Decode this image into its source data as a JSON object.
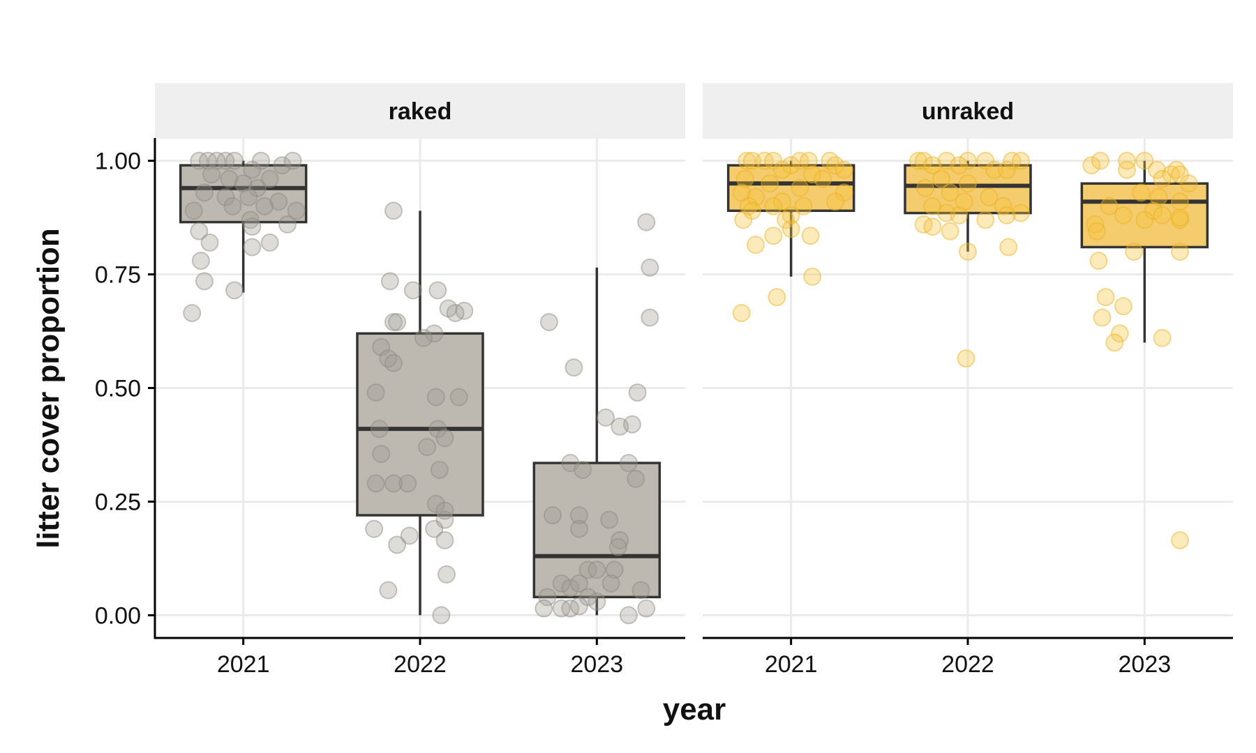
{
  "chart_data": {
    "type": "boxplot",
    "xlabel": "year",
    "ylabel": "litter cover proportion",
    "categories": [
      "2021",
      "2022",
      "2023"
    ],
    "ylim": [
      -0.05,
      1.05
    ],
    "yticks": [
      "0.00",
      "0.25",
      "0.50",
      "0.75",
      "1.00"
    ],
    "grid": true,
    "legend": "none",
    "panels": [
      {
        "label": "raked",
        "color": "#BDB9B1",
        "boxes": [
          {
            "year": "2021",
            "min": 0.71,
            "q1": 0.865,
            "median": 0.94,
            "q3": 0.99,
            "max": 1.0
          },
          {
            "year": "2022",
            "min": 0.0,
            "q1": 0.22,
            "median": 0.41,
            "q3": 0.62,
            "max": 0.89
          },
          {
            "year": "2023",
            "min": 0.0,
            "q1": 0.04,
            "median": 0.13,
            "q3": 0.335,
            "max": 0.765
          }
        ],
        "points": [
          [
            [
              -0.25,
              1.0
            ],
            [
              -0.2,
              1.0
            ],
            [
              -0.15,
              1.0
            ],
            [
              -0.1,
              1.0
            ],
            [
              -0.05,
              1.0
            ],
            [
              0.1,
              1.0
            ],
            [
              0.22,
              0.99
            ],
            [
              0.28,
              1.0
            ],
            [
              0.05,
              0.98
            ],
            [
              0.15,
              0.96
            ],
            [
              -0.18,
              0.97
            ],
            [
              -0.08,
              0.96
            ],
            [
              0.0,
              0.95
            ],
            [
              0.08,
              0.94
            ],
            [
              -0.22,
              0.93
            ],
            [
              -0.1,
              0.92
            ],
            [
              0.03,
              0.92
            ],
            [
              0.2,
              0.91
            ],
            [
              -0.06,
              0.9
            ],
            [
              0.12,
              0.9
            ],
            [
              -0.28,
              0.89
            ],
            [
              0.3,
              0.89
            ],
            [
              0.04,
              0.87
            ],
            [
              0.25,
              0.86
            ],
            [
              0.05,
              0.855
            ],
            [
              -0.25,
              0.845
            ],
            [
              -0.19,
              0.82
            ],
            [
              0.15,
              0.82
            ],
            [
              0.05,
              0.81
            ],
            [
              -0.24,
              0.78
            ],
            [
              -0.22,
              0.735
            ],
            [
              -0.05,
              0.715
            ],
            [
              -0.29,
              0.665
            ]
          ],
          [
            [
              -0.15,
              0.89
            ],
            [
              -0.17,
              0.735
            ],
            [
              -0.04,
              0.715
            ],
            [
              0.1,
              0.715
            ],
            [
              0.16,
              0.675
            ],
            [
              0.25,
              0.67
            ],
            [
              0.2,
              0.665
            ],
            [
              -0.15,
              0.645
            ],
            [
              -0.13,
              0.645
            ],
            [
              0.08,
              0.62
            ],
            [
              0.02,
              0.61
            ],
            [
              -0.22,
              0.59
            ],
            [
              -0.18,
              0.565
            ],
            [
              -0.15,
              0.555
            ],
            [
              -0.25,
              0.49
            ],
            [
              0.09,
              0.48
            ],
            [
              0.22,
              0.48
            ],
            [
              -0.23,
              0.41
            ],
            [
              0.1,
              0.41
            ],
            [
              0.14,
              0.39
            ],
            [
              0.04,
              0.37
            ],
            [
              -0.22,
              0.355
            ],
            [
              0.11,
              0.32
            ],
            [
              -0.15,
              0.29
            ],
            [
              -0.25,
              0.29
            ],
            [
              -0.07,
              0.29
            ],
            [
              0.09,
              0.245
            ],
            [
              0.14,
              0.23
            ],
            [
              0.14,
              0.21
            ],
            [
              0.08,
              0.19
            ],
            [
              -0.26,
              0.19
            ],
            [
              -0.06,
              0.175
            ],
            [
              0.14,
              0.165
            ],
            [
              -0.13,
              0.155
            ],
            [
              -0.18,
              0.055
            ],
            [
              0.15,
              0.09
            ],
            [
              0.12,
              0.0
            ]
          ],
          [
            [
              -0.27,
              0.645
            ],
            [
              -0.13,
              0.545
            ],
            [
              0.3,
              0.765
            ],
            [
              0.28,
              0.865
            ],
            [
              0.3,
              0.655
            ],
            [
              0.23,
              0.49
            ],
            [
              0.05,
              0.435
            ],
            [
              0.13,
              0.415
            ],
            [
              0.2,
              0.42
            ],
            [
              -0.15,
              0.335
            ],
            [
              -0.08,
              0.32
            ],
            [
              0.18,
              0.335
            ],
            [
              0.22,
              0.3
            ],
            [
              -0.25,
              0.22
            ],
            [
              -0.1,
              0.22
            ],
            [
              0.07,
              0.21
            ],
            [
              -0.1,
              0.19
            ],
            [
              0.13,
              0.165
            ],
            [
              0.12,
              0.15
            ],
            [
              -0.05,
              0.1
            ],
            [
              0.0,
              0.1
            ],
            [
              0.1,
              0.1
            ],
            [
              -0.2,
              0.07
            ],
            [
              -0.15,
              0.06
            ],
            [
              -0.1,
              0.07
            ],
            [
              0.08,
              0.07
            ],
            [
              0.25,
              0.055
            ],
            [
              -0.28,
              0.04
            ],
            [
              -0.05,
              0.04
            ],
            [
              -0.3,
              0.015
            ],
            [
              -0.2,
              0.015
            ],
            [
              -0.15,
              0.015
            ],
            [
              -0.1,
              0.02
            ],
            [
              0.0,
              0.03
            ],
            [
              0.28,
              0.015
            ],
            [
              0.18,
              0.0
            ]
          ]
        ]
      },
      {
        "label": "unraked",
        "color": "#F4CC6E",
        "point_color": "#F6C23D",
        "boxes": [
          {
            "year": "2021",
            "min": 0.745,
            "q1": 0.89,
            "median": 0.95,
            "q3": 0.99,
            "max": 1.0
          },
          {
            "year": "2022",
            "min": 0.8,
            "q1": 0.885,
            "median": 0.945,
            "q3": 0.99,
            "max": 1.0
          },
          {
            "year": "2023",
            "min": 0.6,
            "q1": 0.81,
            "median": 0.91,
            "q3": 0.95,
            "max": 1.0
          }
        ],
        "points": [
          [
            [
              -0.25,
              1.0
            ],
            [
              -0.22,
              1.0
            ],
            [
              -0.15,
              1.0
            ],
            [
              -0.1,
              1.0
            ],
            [
              0.0,
              0.99
            ],
            [
              0.05,
              1.0
            ],
            [
              0.1,
              1.0
            ],
            [
              0.22,
              1.0
            ],
            [
              0.25,
              0.99
            ],
            [
              0.3,
              0.98
            ],
            [
              -0.05,
              0.98
            ],
            [
              0.12,
              0.97
            ],
            [
              0.18,
              0.96
            ],
            [
              -0.26,
              0.96
            ],
            [
              -0.12,
              0.95
            ],
            [
              0.05,
              0.94
            ],
            [
              -0.2,
              0.92
            ],
            [
              0.3,
              0.93
            ],
            [
              -0.28,
              0.93
            ],
            [
              -0.05,
              0.91
            ],
            [
              -0.24,
              0.9
            ],
            [
              -0.22,
              0.89
            ],
            [
              0.07,
              0.9
            ],
            [
              -0.1,
              0.9
            ],
            [
              0.25,
              0.91
            ],
            [
              0.0,
              0.88
            ],
            [
              -0.27,
              0.87
            ],
            [
              -0.03,
              0.87
            ],
            [
              -0.1,
              0.835
            ],
            [
              -0.2,
              0.815
            ],
            [
              0.11,
              0.835
            ],
            [
              0.0,
              0.85
            ],
            [
              0.12,
              0.745
            ],
            [
              -0.08,
              0.7
            ],
            [
              -0.28,
              0.665
            ]
          ],
          [
            [
              -0.28,
              1.0
            ],
            [
              -0.25,
              1.0
            ],
            [
              -0.12,
              1.0
            ],
            [
              0.0,
              1.0
            ],
            [
              0.1,
              1.0
            ],
            [
              0.25,
              1.0
            ],
            [
              0.3,
              1.0
            ],
            [
              -0.2,
              0.99
            ],
            [
              -0.05,
              0.99
            ],
            [
              0.15,
              0.98
            ],
            [
              0.22,
              0.98
            ],
            [
              -0.15,
              0.96
            ],
            [
              0.0,
              0.95
            ],
            [
              -0.24,
              0.94
            ],
            [
              -0.1,
              0.93
            ],
            [
              0.12,
              0.92
            ],
            [
              -0.02,
              0.91
            ],
            [
              0.2,
              0.9
            ],
            [
              -0.2,
              0.9
            ],
            [
              0.3,
              0.885
            ],
            [
              -0.12,
              0.885
            ],
            [
              -0.05,
              0.88
            ],
            [
              0.22,
              0.88
            ],
            [
              0.1,
              0.87
            ],
            [
              -0.25,
              0.86
            ],
            [
              -0.2,
              0.855
            ],
            [
              -0.1,
              0.845
            ],
            [
              0.0,
              0.8
            ],
            [
              0.23,
              0.81
            ],
            [
              -0.01,
              0.565
            ]
          ],
          [
            [
              -0.3,
              0.99
            ],
            [
              -0.25,
              1.0
            ],
            [
              -0.1,
              1.0
            ],
            [
              -0.1,
              0.98
            ],
            [
              0.0,
              1.0
            ],
            [
              0.07,
              0.98
            ],
            [
              0.15,
              0.97
            ],
            [
              0.18,
              0.98
            ],
            [
              0.2,
              0.97
            ],
            [
              0.25,
              0.95
            ],
            [
              0.1,
              0.96
            ],
            [
              -0.02,
              0.93
            ],
            [
              0.08,
              0.92
            ],
            [
              0.2,
              0.91
            ],
            [
              -0.2,
              0.9
            ],
            [
              0.05,
              0.89
            ],
            [
              0.1,
              0.88
            ],
            [
              -0.12,
              0.88
            ],
            [
              0.2,
              0.87
            ],
            [
              0.0,
              0.87
            ],
            [
              0.2,
              0.875
            ],
            [
              -0.28,
              0.86
            ],
            [
              -0.27,
              0.845
            ],
            [
              -0.26,
              0.78
            ],
            [
              0.2,
              0.8
            ],
            [
              -0.06,
              0.8
            ],
            [
              -0.22,
              0.7
            ],
            [
              -0.12,
              0.68
            ],
            [
              -0.24,
              0.655
            ],
            [
              -0.14,
              0.62
            ],
            [
              -0.17,
              0.6
            ],
            [
              0.1,
              0.61
            ],
            [
              0.2,
              0.165
            ]
          ]
        ]
      }
    ]
  }
}
